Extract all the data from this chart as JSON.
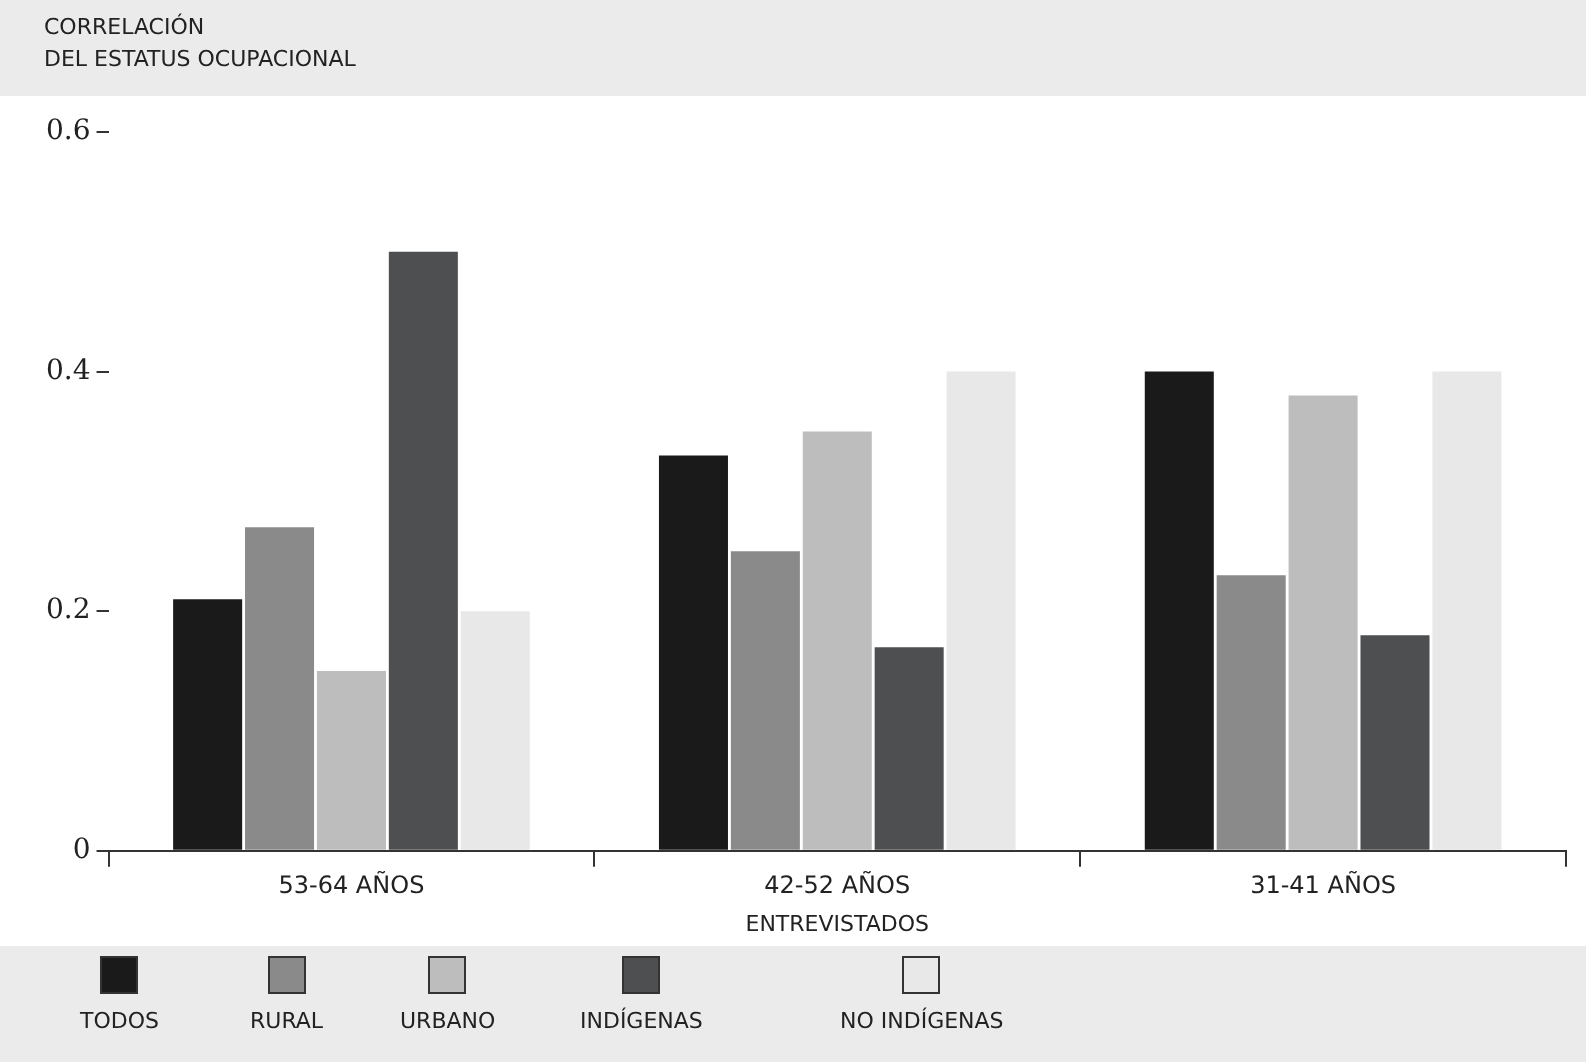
{
  "chart_data": {
    "type": "bar",
    "ylabel": "CORRELACIÓN\nDEL ESTATUS OCUPACIONAL",
    "xlabel": "ENTREVISTADOS",
    "categories": [
      "53-64 AÑOS",
      "42-52 AÑOS",
      "31-41 AÑOS"
    ],
    "series": [
      {
        "name": "TODOS",
        "color": "#1a1a1a",
        "values": [
          0.21,
          0.33,
          0.4
        ]
      },
      {
        "name": "RURAL",
        "color": "#8a8a8a",
        "values": [
          0.27,
          0.25,
          0.23
        ]
      },
      {
        "name": "URBANO",
        "color": "#bdbdbd",
        "values": [
          0.15,
          0.35,
          0.38
        ]
      },
      {
        "name": "INDÍGENAS",
        "color": "#4d4f51",
        "values": [
          0.5,
          0.17,
          0.18
        ]
      },
      {
        "name": "NO INDÍGENAS",
        "color": "#e8e8e8",
        "values": [
          0.2,
          0.4,
          0.4
        ]
      }
    ],
    "ylim": [
      0,
      0.6
    ],
    "yticks": [
      0,
      0.2,
      0.4,
      0.6
    ],
    "legend": "bottom"
  }
}
